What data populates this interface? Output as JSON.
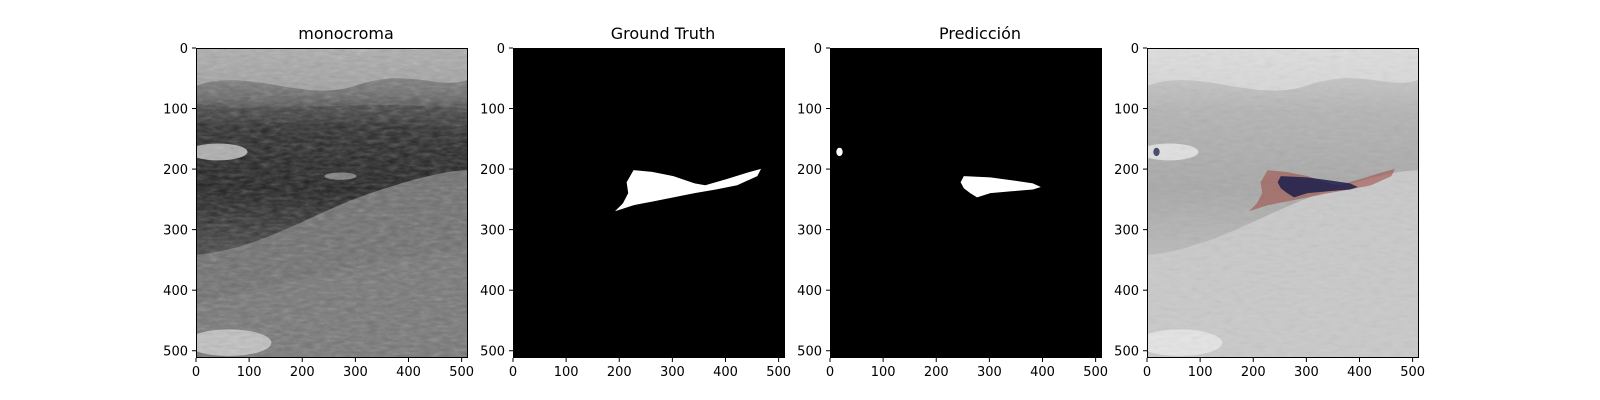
{
  "figure": {
    "panels": [
      {
        "id": "monochrome",
        "title": "monocroma",
        "kind": "image-grayscale"
      },
      {
        "id": "ground-truth",
        "title": "Ground Truth",
        "kind": "binary-mask"
      },
      {
        "id": "prediction",
        "title": "Predicción",
        "kind": "binary-mask"
      },
      {
        "id": "overlay",
        "title": "",
        "kind": "overlay"
      }
    ],
    "axes": {
      "x_ticks": [
        "0",
        "100",
        "200",
        "300",
        "400",
        "500"
      ],
      "y_ticks": [
        "0",
        "100",
        "200",
        "300",
        "400",
        "500"
      ],
      "x_range": [
        0,
        512
      ],
      "y_range": [
        0,
        512
      ]
    },
    "colors": {
      "mask_foreground": "#ffffff",
      "mask_background": "#000000",
      "ground_truth_overlay": "#a0524a",
      "prediction_overlay": "#1c1f4a"
    }
  }
}
